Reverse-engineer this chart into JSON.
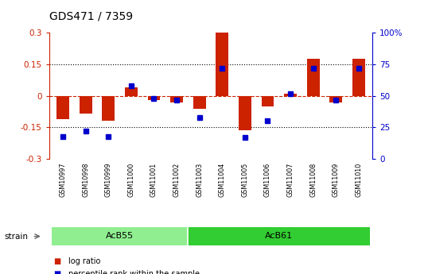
{
  "title": "GDS471 / 7359",
  "samples": [
    "GSM10997",
    "GSM10998",
    "GSM10999",
    "GSM11000",
    "GSM11001",
    "GSM11002",
    "GSM11003",
    "GSM11004",
    "GSM11005",
    "GSM11006",
    "GSM11007",
    "GSM11008",
    "GSM11009",
    "GSM11010"
  ],
  "log_ratio": [
    -0.11,
    -0.085,
    -0.12,
    0.04,
    -0.02,
    -0.03,
    -0.06,
    0.3,
    -0.165,
    -0.05,
    0.01,
    0.175,
    -0.03,
    0.175
  ],
  "percentile": [
    18,
    22,
    18,
    58,
    48,
    47,
    33,
    72,
    17,
    30,
    52,
    72,
    47,
    72
  ],
  "strain_groups": [
    {
      "label": "AcB55",
      "start": 0,
      "end": 5,
      "color": "#90EE90"
    },
    {
      "label": "AcB61",
      "start": 6,
      "end": 13,
      "color": "#32CD32"
    }
  ],
  "bar_color": "#CC2200",
  "dot_color": "#0000CC",
  "ylim": [
    -0.3,
    0.3
  ],
  "yticks": [
    -0.3,
    -0.15,
    0,
    0.15,
    0.3
  ],
  "ytick_labels": [
    "-0.3",
    "-0.15",
    "0",
    "0.15",
    "0.3"
  ],
  "right_ylim": [
    0,
    100
  ],
  "right_yticks": [
    0,
    25,
    50,
    75,
    100
  ],
  "right_ytick_labels": [
    "0",
    "25",
    "50",
    "75",
    "100%"
  ],
  "hlines": [
    0.15,
    -0.15
  ],
  "hline_zero_color": "#CC2200",
  "hline_dotted_color": "#000000",
  "legend_items": [
    {
      "color": "#CC2200",
      "label": "log ratio"
    },
    {
      "color": "#0000CC",
      "label": "percentile rank within the sample"
    }
  ],
  "strain_label": "strain",
  "bar_width": 0.55,
  "dot_size": 22,
  "background_color": "#ffffff",
  "tick_label_color_left": "#CC2200",
  "tick_label_color_right": "#0000CC"
}
